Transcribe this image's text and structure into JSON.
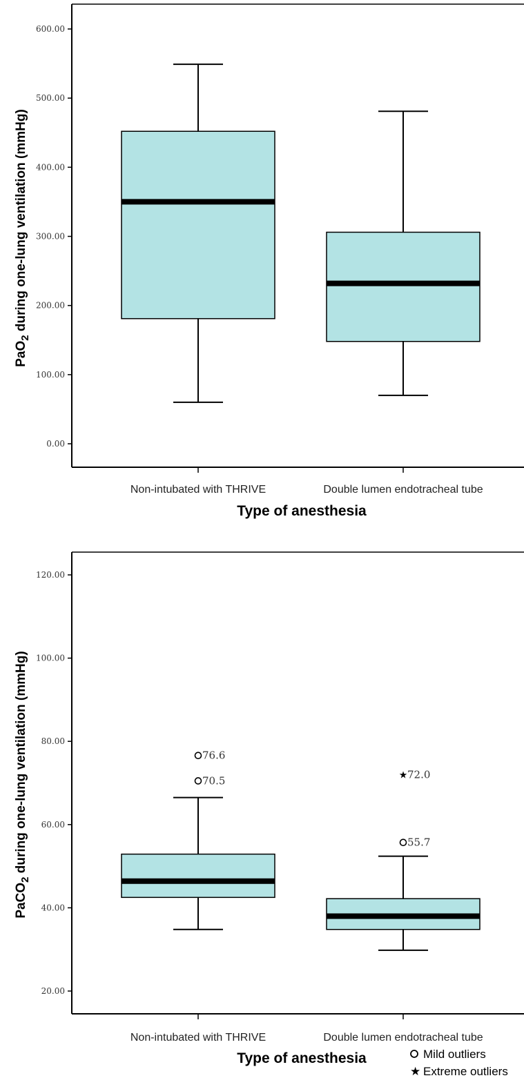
{
  "chart_data": [
    {
      "type": "box",
      "xlabel": "Type of anesthesia",
      "ylabel": "PaO",
      "ylabel_sub": "2",
      "ylabel_rest": " during one-lung ventilation (mmHg)",
      "ylim": [
        0,
        600
      ],
      "yticks": [
        "0.00",
        "100.00",
        "200.00",
        "300.00",
        "400.00",
        "500.00",
        "600.00"
      ],
      "ytick_values": [
        0,
        100,
        200,
        300,
        400,
        500,
        600
      ],
      "categories": [
        "Non-intubated with THRIVE",
        "Double lumen endotracheal tube"
      ],
      "boxes": [
        {
          "min": 60,
          "q1": 181,
          "median": 350,
          "q3": 452,
          "max": 549
        },
        {
          "min": 70,
          "q1": 148,
          "median": 232,
          "q3": 306,
          "max": 481
        }
      ],
      "outliers": []
    },
    {
      "type": "box",
      "xlabel": "Type of anesthesia",
      "ylabel": "PaCO",
      "ylabel_sub": "2",
      "ylabel_rest": " during one-lung ventilation (mmHg)",
      "ylim": [
        20,
        120
      ],
      "yticks": [
        "20.00",
        "40.00",
        "60.00",
        "80.00",
        "100.00",
        "120.00"
      ],
      "ytick_values": [
        20,
        40,
        60,
        80,
        100,
        120
      ],
      "categories": [
        "Non-intubated with THRIVE",
        "Double lumen endotracheal tube"
      ],
      "boxes": [
        {
          "min": 34.8,
          "q1": 42.5,
          "median": 46.4,
          "q3": 52.9,
          "max": 66.5
        },
        {
          "min": 29.8,
          "q1": 34.8,
          "median": 38.0,
          "q3": 42.2,
          "max": 52.4
        }
      ],
      "outliers": [
        {
          "group": 0,
          "value": 76.6,
          "label": "76.6",
          "kind": "mild"
        },
        {
          "group": 0,
          "value": 70.5,
          "label": "70.5",
          "kind": "mild"
        },
        {
          "group": 1,
          "value": 72.0,
          "label": "72.0",
          "kind": "extreme"
        },
        {
          "group": 1,
          "value": 55.7,
          "label": "55.7",
          "kind": "mild"
        }
      ]
    }
  ],
  "legend": {
    "mild_label": "Mild outliers",
    "extreme_label": "Extreme outliers"
  },
  "colors": {
    "box_fill": "#b3e3e4",
    "stroke": "#000000"
  }
}
